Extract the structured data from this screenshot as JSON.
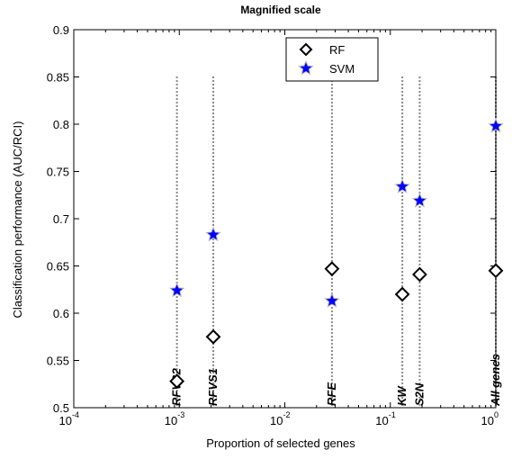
{
  "chart_data": {
    "type": "scatter",
    "title": "Magnified scale",
    "xlabel": "Proportion of selected genes",
    "ylabel": "Classification performance (AUC/RCI)",
    "x_scale": "log",
    "xlim": [
      0.0001,
      1
    ],
    "ylim": [
      0.5,
      0.9
    ],
    "x_ticks": [
      {
        "base": "10",
        "exp": "-4"
      },
      {
        "base": "10",
        "exp": "-3"
      },
      {
        "base": "10",
        "exp": "-2"
      },
      {
        "base": "10",
        "exp": "-1"
      },
      {
        "base": "10",
        "exp": "0"
      }
    ],
    "y_ticks": [
      "0.5",
      "0.55",
      "0.6",
      "0.65",
      "0.7",
      "0.75",
      "0.8",
      "0.85",
      "0.9"
    ],
    "legend_position": "top-center",
    "methods": [
      {
        "label": "RFVS2",
        "x": 0.00095
      },
      {
        "label": "RFVS1",
        "x": 0.0021
      },
      {
        "label": "RFE",
        "x": 0.028
      },
      {
        "label": "KW",
        "x": 0.13
      },
      {
        "label": "S2N",
        "x": 0.19
      },
      {
        "label": "All genes",
        "x": 1.0
      }
    ],
    "series": [
      {
        "name": "RF",
        "marker": "diamond",
        "color": "#000000",
        "x": [
          0.00095,
          0.0021,
          0.028,
          0.13,
          0.19,
          1.0
        ],
        "y": [
          0.528,
          0.575,
          0.647,
          0.62,
          0.641,
          0.645
        ]
      },
      {
        "name": "SVM",
        "marker": "star",
        "color": "#0000ff",
        "x": [
          0.00095,
          0.0021,
          0.028,
          0.13,
          0.19,
          1.0
        ],
        "y": [
          0.624,
          0.683,
          0.613,
          0.734,
          0.719,
          0.798
        ]
      }
    ]
  }
}
